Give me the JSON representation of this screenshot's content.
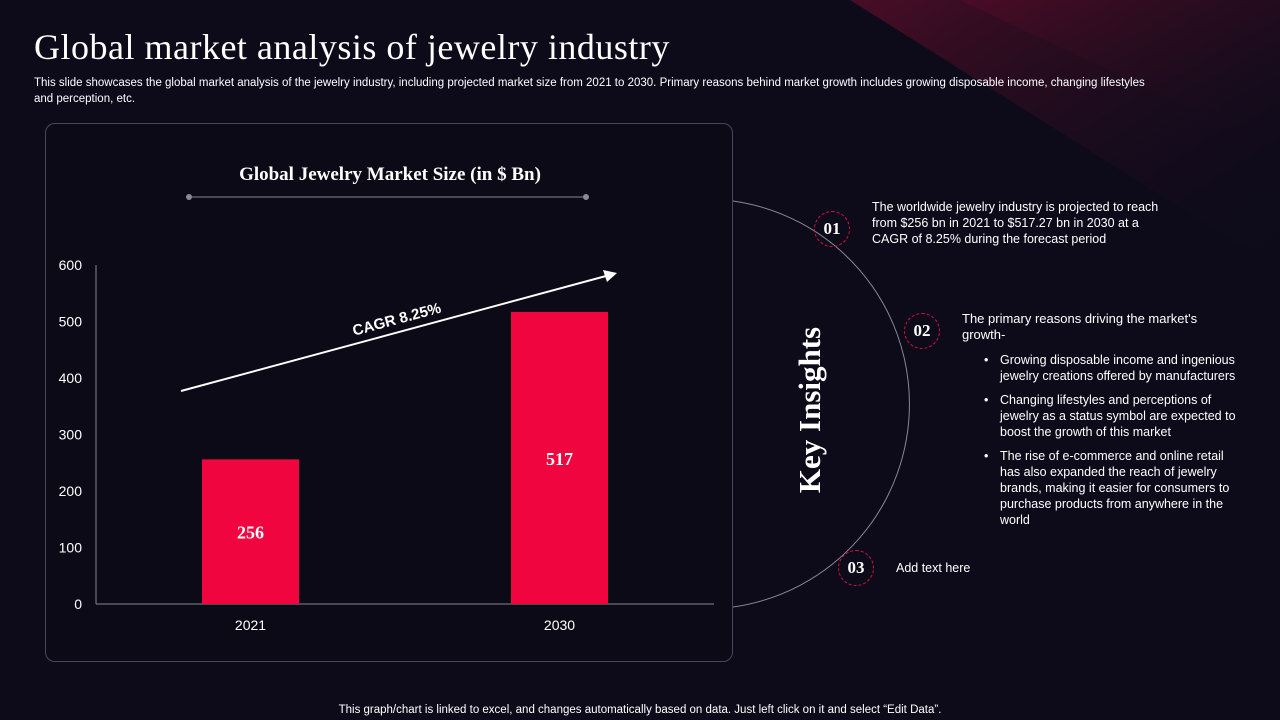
{
  "slide": {
    "title": "Global market analysis of jewelry industry",
    "subtitle": "This slide showcases the global market analysis of the jewelry industry, including projected market size from 2021 to 2030. Primary reasons behind market growth includes growing disposable income, changing lifestyles and perception, etc.",
    "footer": "This graph/chart is linked to excel,  and changes automatically based on data. Just left click on it and select “Edit Data”."
  },
  "colors": {
    "background": "#0d0b1a",
    "bar": "#f0053f",
    "accent": "#e0103f"
  },
  "chart_data": {
    "type": "bar",
    "title": "Global Jewelry Market Size (in $ Bn)",
    "categories": [
      "2021",
      "2030"
    ],
    "values": [
      256,
      517
    ],
    "data_labels": [
      "256",
      "517"
    ],
    "ylim": [
      0,
      600
    ],
    "yticks": [
      "0",
      "100",
      "200",
      "300",
      "400",
      "500",
      "600"
    ],
    "annotation": "CAGR 8.25%",
    "grid": false
  },
  "insights": {
    "heading": "Key Insights",
    "items": [
      {
        "number": "01",
        "text": "The worldwide  jewelry industry is projected to reach from $256 bn in 2021 to $517.27 bn in 2030 at a CAGR of 8.25%  during the forecast period"
      },
      {
        "number": "02",
        "text": "The primary reasons driving the market's growth-",
        "bullets": [
          "Growing disposable income and ingenious jewelry creations offered  by manufacturers",
          "Changing lifestyles and perceptions of jewelry as a status symbol are expected to boost the growth of this market",
          "The rise of e-commerce and online retail has also expanded the reach of jewelry brands, making it easier for consumers to purchase products from anywhere  in the world"
        ]
      },
      {
        "number": "03",
        "text": "Add text here"
      }
    ]
  }
}
